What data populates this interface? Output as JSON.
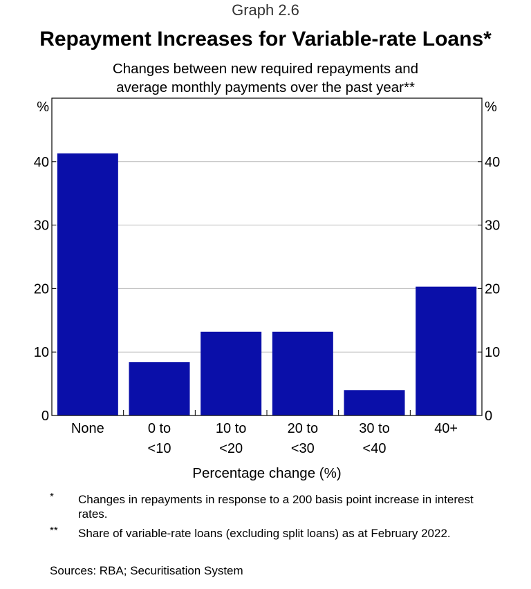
{
  "header": {
    "graph_number": "Graph 2.6",
    "title": "Repayment Increases for Variable-rate Loans*",
    "subtitle_line1": "Changes between new required repayments and",
    "subtitle_line2": "average monthly payments over the past year**"
  },
  "chart_data": {
    "type": "bar",
    "categories": [
      [
        "None"
      ],
      [
        "0 to",
        "<10"
      ],
      [
        "10 to",
        "<20"
      ],
      [
        "20 to",
        "<30"
      ],
      [
        "30 to",
        "<40"
      ],
      [
        "40+"
      ]
    ],
    "values": [
      41.3,
      8.4,
      13.2,
      13.2,
      4.0,
      20.3
    ],
    "xlabel": "Percentage change (%)",
    "ylabel_left": "%",
    "ylabel_right": "%",
    "ylim": [
      0,
      50
    ],
    "yticks": [
      0,
      10,
      20,
      30,
      40
    ],
    "grid": true,
    "bar_color": "#0a0fa9"
  },
  "footnotes": [
    {
      "mark": "*",
      "text": "Changes in repayments in response to a 200 basis point increase in interest rates."
    },
    {
      "mark": "**",
      "text": "Share of variable-rate loans (excluding split loans) as at February 2022."
    }
  ],
  "sources": "Sources: RBA; Securitisation System"
}
